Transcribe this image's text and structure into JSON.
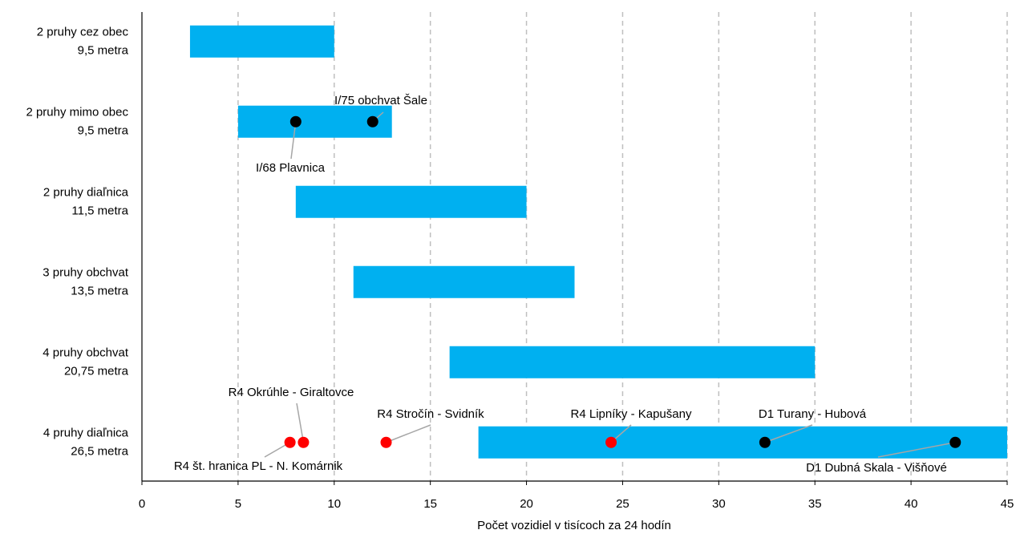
{
  "chart_data": {
    "type": "range-bar",
    "xlabel": "Počet vozidiel v tisícoch za 24 hodín",
    "xlim": [
      0,
      45
    ],
    "xticks": [
      0,
      5,
      10,
      15,
      20,
      25,
      30,
      35,
      40,
      45
    ],
    "grid": true,
    "bar_color": "#00b0f0",
    "rows": [
      {
        "label": [
          "2 pruhy cez obec",
          "9,5 metra"
        ],
        "range": [
          2.5,
          10
        ],
        "points": []
      },
      {
        "label": [
          "2 pruhy mimo obec",
          "9,5 metra"
        ],
        "range": [
          5,
          13
        ],
        "points": [
          {
            "name": "I/68 Plavnica",
            "x": 8,
            "color": "#000000"
          },
          {
            "name": "I/75 obchvat Šale",
            "x": 12,
            "color": "#000000"
          }
        ]
      },
      {
        "label": [
          "2 pruhy diaľnica",
          "11,5 metra"
        ],
        "range": [
          8,
          20
        ],
        "points": []
      },
      {
        "label": [
          "3 pruhy obchvat",
          "13,5 metra"
        ],
        "range": [
          11,
          22.5
        ],
        "points": []
      },
      {
        "label": [
          "4 pruhy obchvat",
          "20,75 metra"
        ],
        "range": [
          16,
          35
        ],
        "points": []
      },
      {
        "label": [
          "4 pruhy diaľnica",
          "26,5 metra"
        ],
        "range": [
          17.5,
          45
        ],
        "points": [
          {
            "name": "R4 št. hranica PL - N. Komárnik",
            "x": 7.7,
            "color": "#ff0000"
          },
          {
            "name": "R4 Okrúhle - Giraltovce",
            "x": 8.4,
            "color": "#ff0000"
          },
          {
            "name": "R4 Stročín - Svidník",
            "x": 12.7,
            "color": "#ff0000"
          },
          {
            "name": "R4 Lipníky - Kapušany",
            "x": 24.4,
            "color": "#ff0000"
          },
          {
            "name": "D1 Turany - Hubová",
            "x": 32.4,
            "color": "#000000"
          },
          {
            "name": "D1 Dubná Skala - Višňové",
            "x": 42.3,
            "color": "#000000"
          }
        ]
      }
    ]
  }
}
